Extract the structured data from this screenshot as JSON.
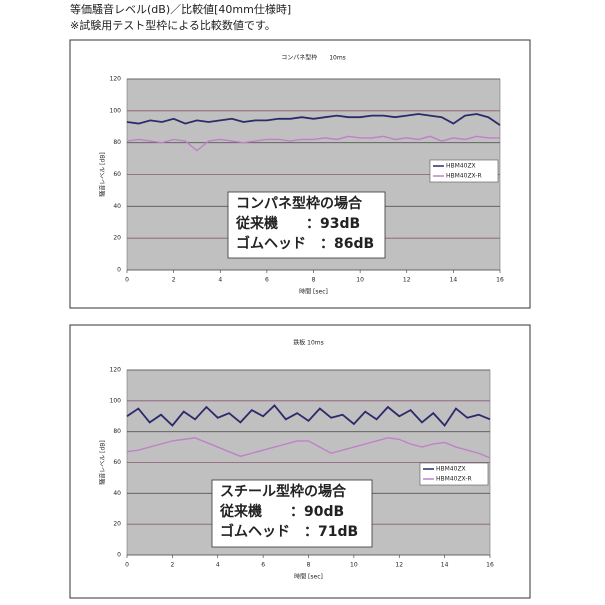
{
  "header": {
    "line1": "等価騒音レベル(dB)／比較値[40mm仕様時]",
    "line2": "※試験用テスト型枠による比較数値です。"
  },
  "chart_data": [
    {
      "type": "line",
      "title": "コンパネ型枠　　10ms",
      "x_label": "時間 [sec]",
      "y_label": "騒音レベル [dB]",
      "xlim": [
        0,
        16
      ],
      "xticks": [
        0,
        2,
        4,
        6,
        8,
        10,
        12,
        14,
        16
      ],
      "ylim": [
        0,
        120
      ],
      "yticks": [
        0,
        20,
        40,
        60,
        80,
        100,
        120
      ],
      "grid": true,
      "x": [
        0,
        0.5,
        1,
        1.5,
        2,
        2.5,
        3,
        3.5,
        4,
        4.5,
        5,
        5.5,
        6,
        6.5,
        7,
        7.5,
        8,
        8.5,
        9,
        9.5,
        10,
        10.5,
        11,
        11.5,
        12,
        12.5,
        13,
        13.5,
        14,
        14.5,
        15,
        15.5,
        16
      ],
      "series": [
        {
          "name": "HBM40ZX",
          "color": "#2b2a6b",
          "values": [
            93,
            92,
            94,
            93,
            95,
            92,
            94,
            93,
            94,
            95,
            93,
            94,
            94,
            95,
            95,
            96,
            95,
            96,
            97,
            96,
            96,
            97,
            97,
            96,
            97,
            98,
            97,
            96,
            92,
            97,
            98,
            96,
            91
          ]
        },
        {
          "name": "HBM40ZX-R",
          "color": "#c080c8",
          "values": [
            81,
            82,
            81,
            80,
            82,
            81,
            75,
            81,
            82,
            81,
            80,
            81,
            82,
            82,
            81,
            82,
            82,
            83,
            82,
            84,
            83,
            83,
            84,
            82,
            83,
            82,
            84,
            81,
            83,
            82,
            84,
            83,
            83
          ]
        }
      ],
      "annotation": [
        "コンパネ型枠の場合",
        "従来機　　：93dB",
        "ゴムヘッド　：86dB"
      ]
    },
    {
      "type": "line",
      "title": "鉄板 10ms",
      "x_label": "時間 [sec]",
      "y_label": "騒音レベル [dB]",
      "xlim": [
        0,
        16
      ],
      "xticks": [
        0,
        2,
        4,
        6,
        8,
        10,
        12,
        14,
        16
      ],
      "ylim": [
        0,
        120
      ],
      "yticks": [
        0,
        20,
        40,
        60,
        80,
        100,
        120
      ],
      "grid": true,
      "x": [
        0,
        0.5,
        1,
        1.5,
        2,
        2.5,
        3,
        3.5,
        4,
        4.5,
        5,
        5.5,
        6,
        6.5,
        7,
        7.5,
        8,
        8.5,
        9,
        9.5,
        10,
        10.5,
        11,
        11.5,
        12,
        12.5,
        13,
        13.5,
        14,
        14.5,
        15,
        15.5,
        16
      ],
      "series": [
        {
          "name": "HBM40ZX",
          "color": "#2b2a6b",
          "values": [
            90,
            95,
            86,
            91,
            84,
            93,
            88,
            96,
            89,
            92,
            86,
            94,
            90,
            97,
            88,
            92,
            87,
            95,
            89,
            91,
            85,
            93,
            88,
            96,
            90,
            94,
            86,
            92,
            84,
            95,
            89,
            91,
            88
          ]
        },
        {
          "name": "HBM40ZX-R",
          "color": "#c080c8",
          "values": [
            67,
            68,
            70,
            72,
            74,
            75,
            76,
            73,
            70,
            67,
            64,
            66,
            68,
            70,
            72,
            74,
            74,
            70,
            66,
            68,
            70,
            72,
            74,
            76,
            75,
            72,
            70,
            72,
            73,
            70,
            68,
            66,
            63
          ]
        }
      ],
      "annotation": [
        "スチール型枠の場合",
        "従来機　　：90dB",
        "ゴムヘッド　：71dB"
      ]
    }
  ]
}
